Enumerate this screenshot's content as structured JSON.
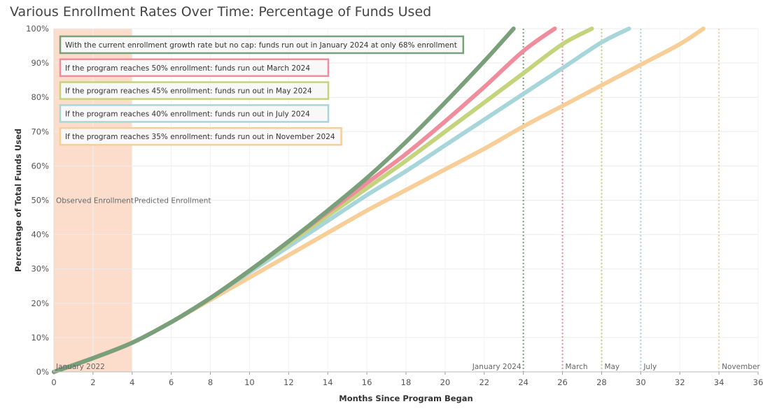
{
  "chart_data": {
    "type": "line",
    "title": "Various Enrollment Rates Over Time: Percentage of Funds Used",
    "xlabel": "Months Since Program Began",
    "ylabel": "Percentage of Total Funds Used",
    "xlim": [
      0,
      36
    ],
    "ylim": [
      0,
      100
    ],
    "x_ticks": [
      "0",
      "2",
      "4",
      "6",
      "8",
      "10",
      "12",
      "14",
      "16",
      "18",
      "20",
      "22",
      "24",
      "26",
      "28",
      "30",
      "32",
      "34",
      "36"
    ],
    "y_ticks": [
      "0%",
      "10%",
      "20%",
      "30%",
      "40%",
      "50%",
      "60%",
      "70%",
      "80%",
      "90%",
      "100%"
    ],
    "observed_region": {
      "x_start": 0,
      "x_end": 4,
      "color": "#fcdccb",
      "label_observed": "Observed Enrollment",
      "label_predicted": "Predicted Enrollment"
    },
    "start_label": "January 2022",
    "series": [
      {
        "name": "no cap",
        "color": "#79a07a",
        "annotation": "With the current enrollment growth rate but no cap: funds run out in January 2024 at only 68% enrollment",
        "runout_month": 24,
        "runout_label": "January 2024",
        "points": [
          [
            0,
            0
          ],
          [
            2,
            4
          ],
          [
            4,
            8.5
          ],
          [
            6,
            14.5
          ],
          [
            8,
            21.5
          ],
          [
            10,
            29.5
          ],
          [
            12,
            38
          ],
          [
            14,
            47
          ],
          [
            16,
            56.5
          ],
          [
            18,
            67
          ],
          [
            20,
            78.5
          ],
          [
            22,
            90.5
          ],
          [
            23.5,
            100
          ]
        ]
      },
      {
        "name": "50% enrollment",
        "color": "#ef8d9d",
        "annotation": "If the program reaches 50% enrollment: funds run out March 2024",
        "runout_month": 26,
        "runout_label": "March",
        "points": [
          [
            0,
            0
          ],
          [
            2,
            4
          ],
          [
            4,
            8.5
          ],
          [
            6,
            14.5
          ],
          [
            8,
            21.5
          ],
          [
            10,
            29.5
          ],
          [
            12,
            38
          ],
          [
            14,
            46.5
          ],
          [
            16,
            55
          ],
          [
            18,
            63.5
          ],
          [
            20,
            73
          ],
          [
            22,
            83
          ],
          [
            24,
            93.5
          ],
          [
            25.6,
            100
          ]
        ]
      },
      {
        "name": "45% enrollment",
        "color": "#c4d47c",
        "annotation": "If the program reaches 45% enrollment: funds run out in May 2024",
        "runout_month": 28,
        "runout_label": "May",
        "points": [
          [
            0,
            0
          ],
          [
            2,
            4
          ],
          [
            4,
            8.5
          ],
          [
            6,
            14.5
          ],
          [
            8,
            21.5
          ],
          [
            10,
            29.5
          ],
          [
            12,
            37.5
          ],
          [
            14,
            45.5
          ],
          [
            16,
            53.5
          ],
          [
            18,
            61.5
          ],
          [
            20,
            70
          ],
          [
            22,
            78.5
          ],
          [
            24,
            87
          ],
          [
            26,
            95.5
          ],
          [
            27.5,
            100
          ]
        ]
      },
      {
        "name": "40% enrollment",
        "color": "#a7d6da",
        "annotation": "If the program reaches 40% enrollment: funds run out in July 2024",
        "runout_month": 30,
        "runout_label": "July",
        "points": [
          [
            0,
            0
          ],
          [
            2,
            4
          ],
          [
            4,
            8.5
          ],
          [
            6,
            14.5
          ],
          [
            8,
            21.5
          ],
          [
            10,
            29
          ],
          [
            12,
            36.5
          ],
          [
            14,
            44
          ],
          [
            16,
            51.5
          ],
          [
            18,
            58.5
          ],
          [
            20,
            66
          ],
          [
            22,
            73.5
          ],
          [
            24,
            81
          ],
          [
            26,
            88.5
          ],
          [
            28,
            96
          ],
          [
            29.4,
            100
          ]
        ]
      },
      {
        "name": "35% enrollment",
        "color": "#f8ce98",
        "annotation": "If the program reaches 35% enrollment: funds run out in November 2024",
        "runout_month": 34,
        "runout_label": "November",
        "points": [
          [
            0,
            0
          ],
          [
            2,
            4
          ],
          [
            4,
            8.5
          ],
          [
            6,
            14.5
          ],
          [
            8,
            21
          ],
          [
            10,
            27.5
          ],
          [
            12,
            34
          ],
          [
            14,
            40.5
          ],
          [
            16,
            47
          ],
          [
            18,
            53
          ],
          [
            20,
            59
          ],
          [
            22,
            65
          ],
          [
            24,
            71.5
          ],
          [
            26,
            77.5
          ],
          [
            28,
            83.5
          ],
          [
            30,
            89.5
          ],
          [
            32,
            95.5
          ],
          [
            33.2,
            100
          ]
        ]
      }
    ]
  }
}
